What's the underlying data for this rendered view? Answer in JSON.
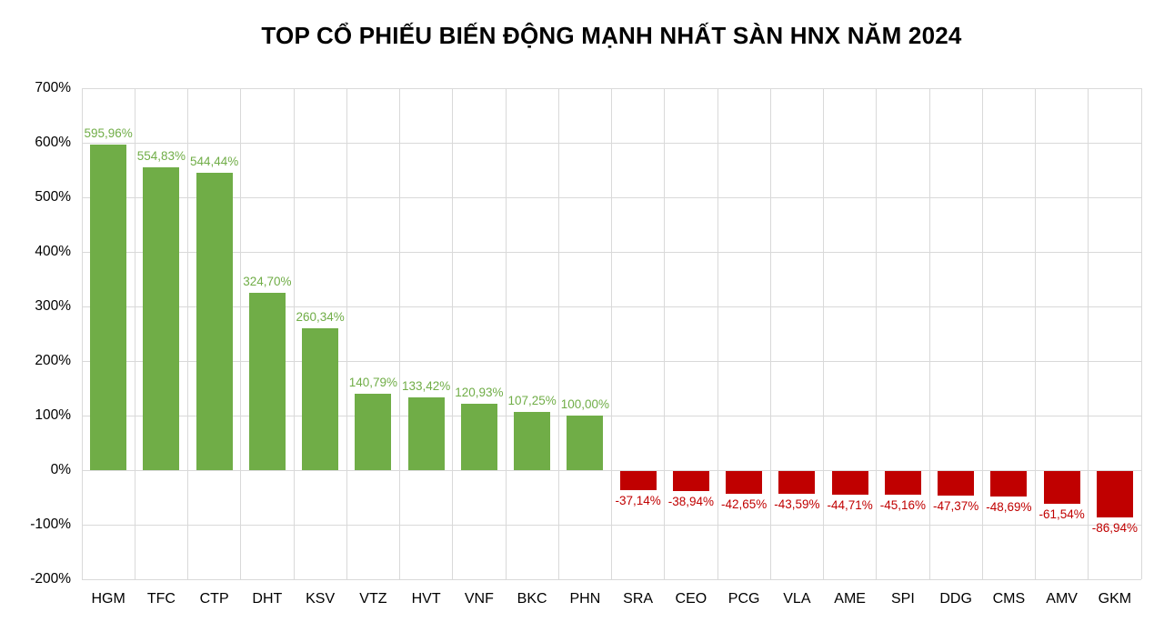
{
  "chart_data": {
    "type": "bar",
    "title": "TOP CỔ PHIẾU BIẾN ĐỘNG MẠNH NHẤT SÀN HNX NĂM 2024",
    "categories": [
      "HGM",
      "TFC",
      "CTP",
      "DHT",
      "KSV",
      "VTZ",
      "HVT",
      "VNF",
      "BKC",
      "PHN",
      "SRA",
      "CEO",
      "PCG",
      "VLA",
      "AME",
      "SPI",
      "DDG",
      "CMS",
      "AMV",
      "GKM"
    ],
    "values": [
      595.96,
      554.83,
      544.44,
      324.7,
      260.34,
      140.79,
      133.42,
      120.93,
      107.25,
      100.0,
      -37.14,
      -38.94,
      -42.65,
      -43.59,
      -44.71,
      -45.16,
      -47.37,
      -48.69,
      -61.54,
      -86.94
    ],
    "value_labels": [
      "595,96%",
      "554,83%",
      "544,44%",
      "324,70%",
      "260,34%",
      "140,79%",
      "133,42%",
      "120,93%",
      "107,25%",
      "100,00%",
      "-37,14%",
      "-38,94%",
      "-42,65%",
      "-43,59%",
      "-44,71%",
      "-45,16%",
      "-47,37%",
      "-48,69%",
      "-61,54%",
      "-86,94%"
    ],
    "yticks": [
      "700%",
      "600%",
      "500%",
      "400%",
      "300%",
      "200%",
      "100%",
      "0%",
      "-100%",
      "-200%"
    ],
    "ytick_values": [
      700,
      600,
      500,
      400,
      300,
      200,
      100,
      0,
      -100,
      -200
    ],
    "ylim": [
      -200,
      700
    ],
    "xlabel": "",
    "ylabel": "",
    "grid": "on",
    "legend": "none",
    "colors": {
      "positive_bar": "#70ad47",
      "negative_bar": "#c00000",
      "positive_label": "#70ad47",
      "negative_label": "#c00000",
      "gridline": "#d9d9d9",
      "axis_text": "#000000",
      "background": "#ffffff",
      "title_text": "#000000"
    }
  }
}
